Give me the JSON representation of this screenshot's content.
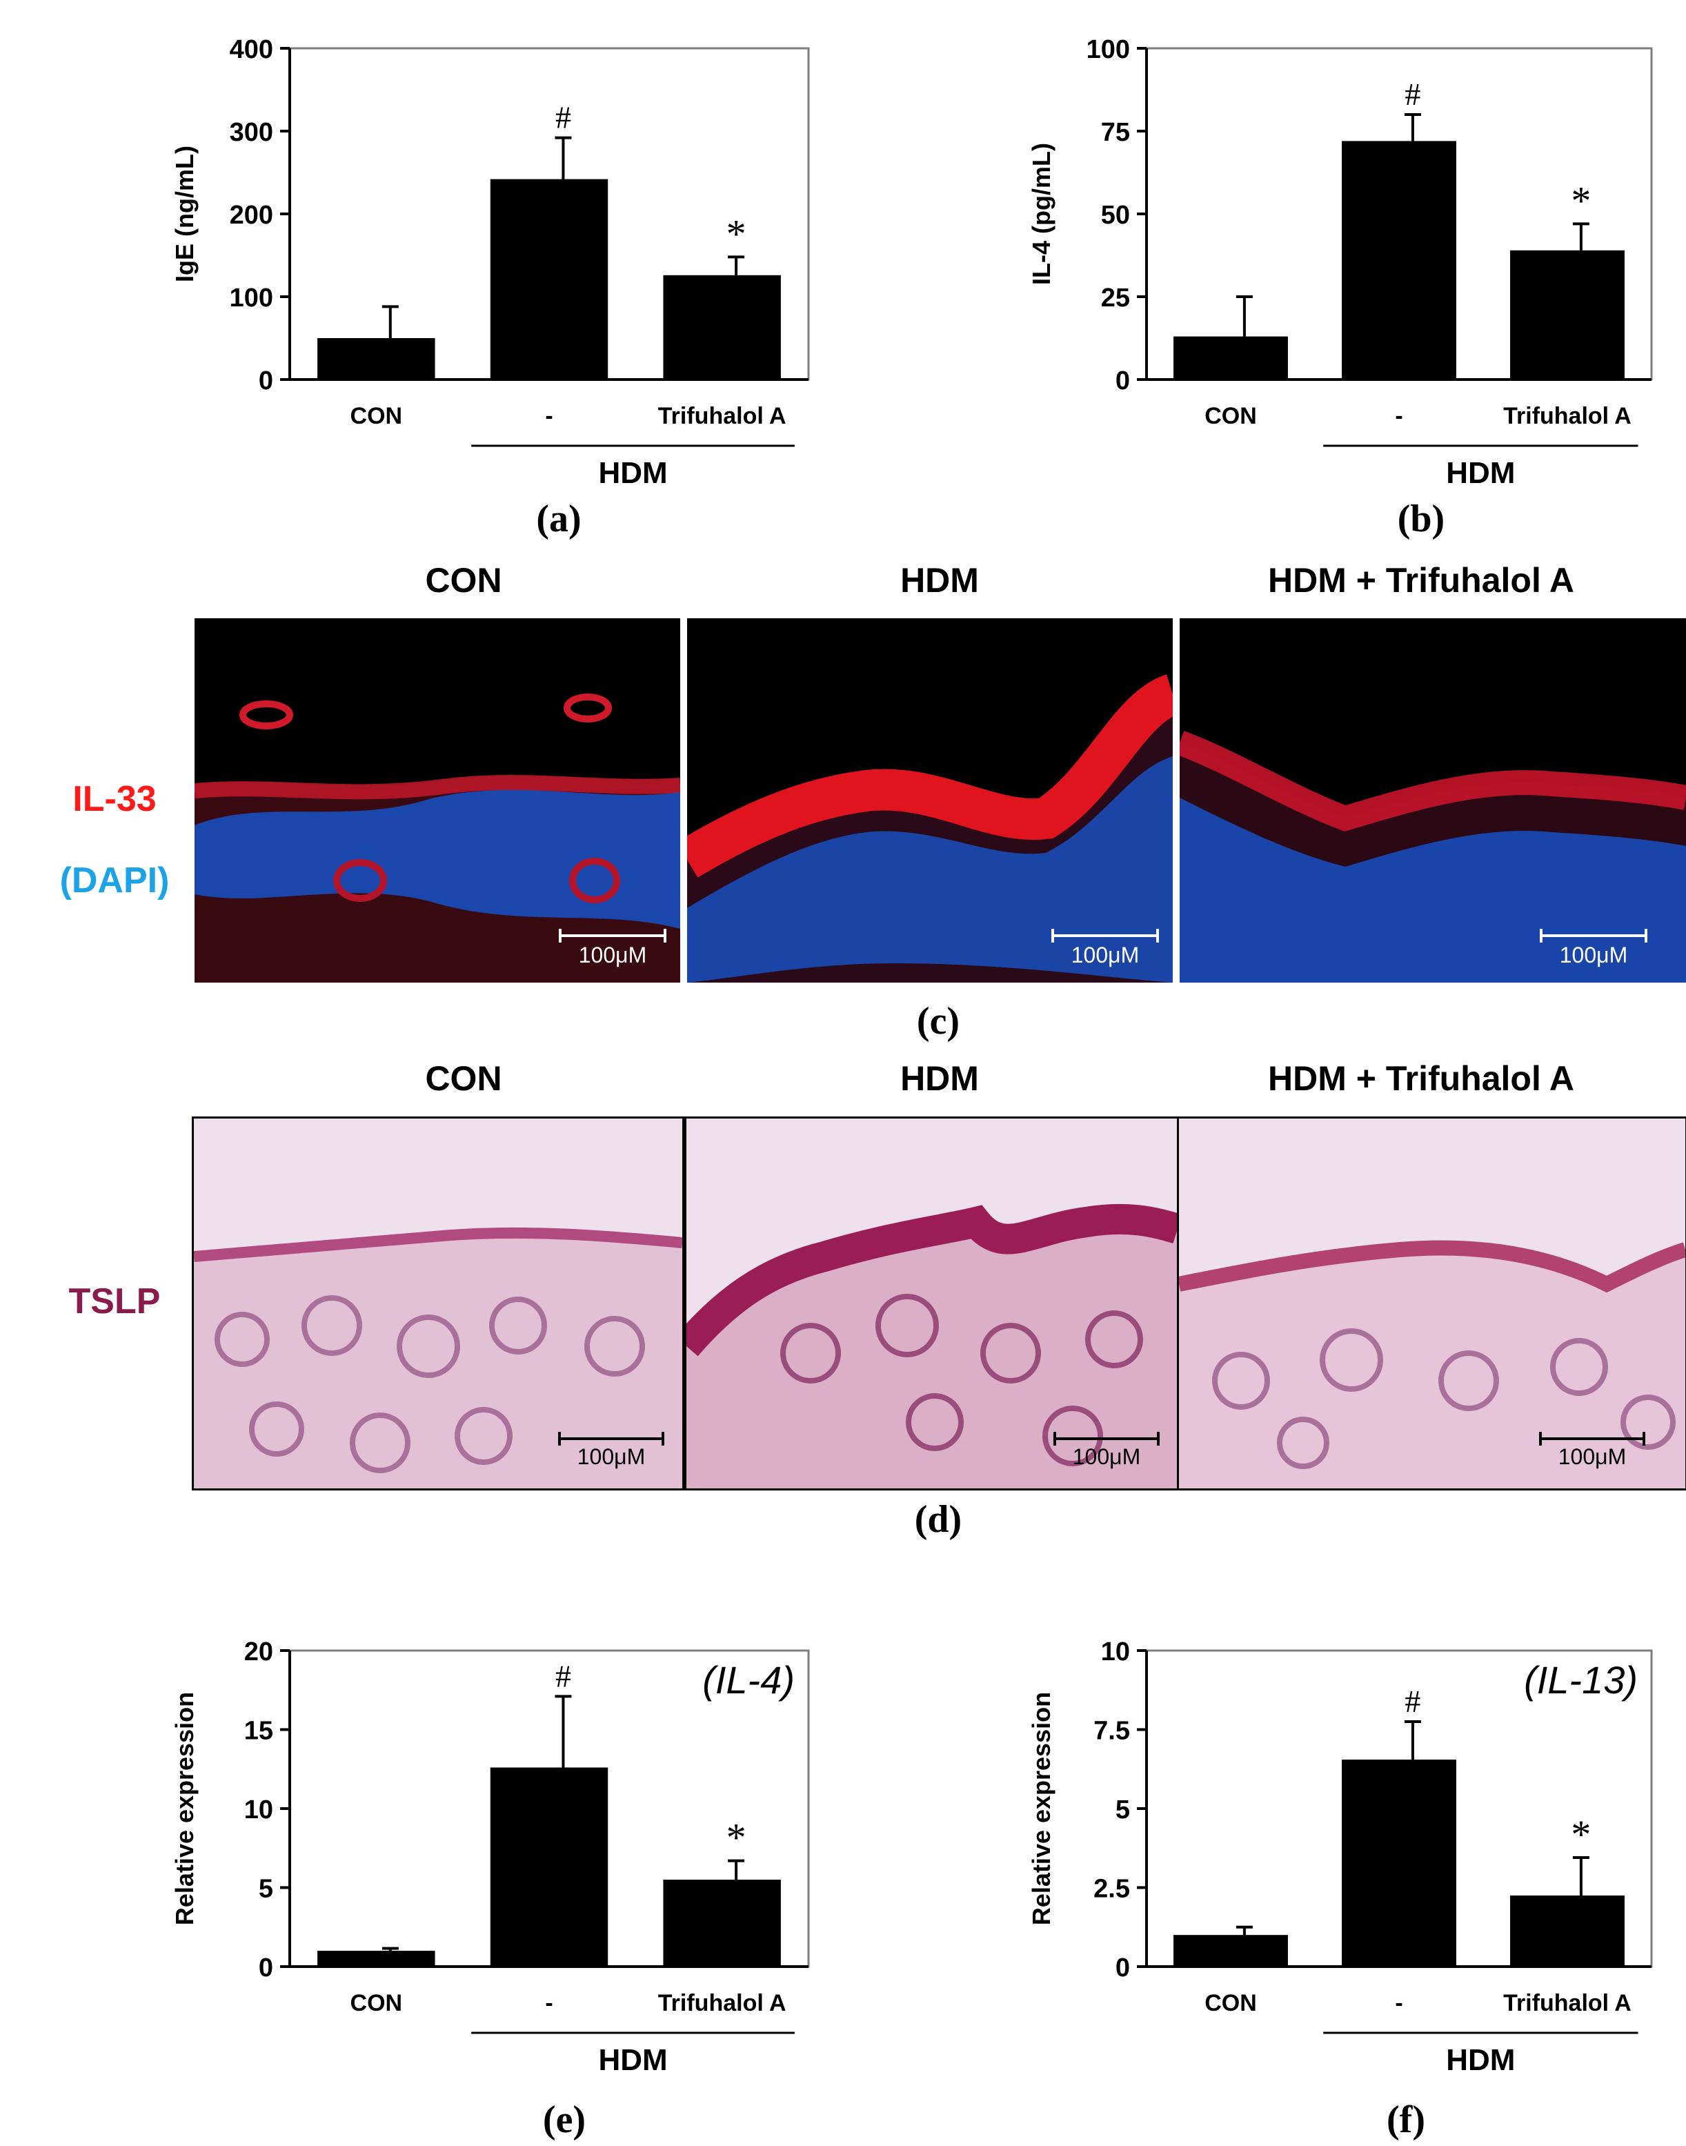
{
  "panel_labels": {
    "a": "(a)",
    "b": "(b)",
    "c": "(c)",
    "d": "(d)",
    "e": "(e)",
    "f": "(f)"
  },
  "columns": [
    "CON",
    "HDM",
    "HDM + Trifuhalol A"
  ],
  "row_c": {
    "label_line1": "IL-33",
    "label_line2": "(DAPI)",
    "color1": "#ff1a1a",
    "color2": "#1aa3e8"
  },
  "row_d": {
    "label": "TSLP",
    "color": "#8b1a4a"
  },
  "scale_bar_label": "100μM",
  "chart_data": [
    {
      "id": "a",
      "type": "bar",
      "categories": [
        "CON",
        "-",
        "Trifuhalol A"
      ],
      "values": [
        50,
        242,
        126
      ],
      "errors": [
        38,
        50,
        22
      ],
      "markers": [
        "",
        "#",
        "*"
      ],
      "ylabel": "IgE (ng/mL)",
      "ylim": [
        0,
        400
      ],
      "yticks": [
        0,
        100,
        200,
        300,
        400
      ],
      "ytick_labels": [
        "0",
        "100",
        "200",
        "300",
        "400"
      ],
      "group_label": "HDM",
      "inset_label": "",
      "bar_color": "#000000"
    },
    {
      "id": "b",
      "type": "bar",
      "categories": [
        "CON",
        "-",
        "Trifuhalol A"
      ],
      "values": [
        13,
        72,
        39
      ],
      "errors": [
        12,
        8,
        8
      ],
      "markers": [
        "",
        "#",
        "*"
      ],
      "ylabel": "IL-4 (pg/mL)",
      "ylim": [
        0,
        100
      ],
      "yticks": [
        0,
        25,
        50,
        75,
        100
      ],
      "ytick_labels": [
        "0",
        "25",
        "50",
        "75",
        "100"
      ],
      "group_label": "HDM",
      "inset_label": "",
      "bar_color": "#000000"
    },
    {
      "id": "e",
      "type": "bar",
      "categories": [
        "CON",
        "-",
        "Trifuhalol A"
      ],
      "values": [
        1.0,
        12.6,
        5.5
      ],
      "errors": [
        0.15,
        4.5,
        1.2
      ],
      "markers": [
        "",
        "#",
        "*"
      ],
      "ylabel": "Relative expression",
      "ylim": [
        0,
        20
      ],
      "yticks": [
        0,
        5,
        10,
        15,
        20
      ],
      "ytick_labels": [
        "0",
        "5",
        "10",
        "15",
        "20"
      ],
      "group_label": "HDM",
      "inset_label": "(IL-4)",
      "bar_color": "#000000"
    },
    {
      "id": "f",
      "type": "bar",
      "categories": [
        "CON",
        "-",
        "Trifuhalol A"
      ],
      "values": [
        1.0,
        6.55,
        2.25
      ],
      "errors": [
        0.25,
        1.2,
        1.2
      ],
      "markers": [
        "",
        "#",
        "*"
      ],
      "ylabel": "Relative expression",
      "ylim": [
        0,
        10
      ],
      "yticks": [
        0,
        2.5,
        5,
        7.5,
        10
      ],
      "ytick_labels": [
        "0",
        "2.5",
        "5",
        "7.5",
        "10"
      ],
      "group_label": "HDM",
      "inset_label": "(IL-13)",
      "bar_color": "#000000"
    }
  ]
}
